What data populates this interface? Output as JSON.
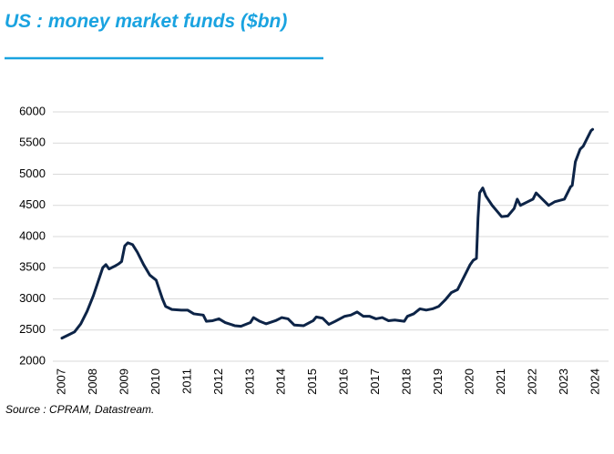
{
  "chart_data": {
    "type": "line",
    "title": "US : money market funds ($bn)",
    "source": "Source : CPRAM, Datastream.",
    "xlim": [
      2007,
      2024
    ],
    "xticks": [
      2007,
      2008,
      2009,
      2010,
      2011,
      2012,
      2013,
      2014,
      2015,
      2016,
      2017,
      2018,
      2019,
      2020,
      2021,
      2022,
      2023,
      2024
    ],
    "ylim": [
      2000,
      6000
    ],
    "yticks": [
      2000,
      2500,
      3000,
      3500,
      4000,
      4500,
      5000,
      5500,
      6000
    ],
    "grid": true,
    "series": [
      {
        "color": "#0d2447",
        "x": [
          2007.0,
          2007.2,
          2007.4,
          2007.6,
          2007.8,
          2008.0,
          2008.2,
          2008.3,
          2008.4,
          2008.5,
          2008.7,
          2008.8,
          2008.9,
          2009.0,
          2009.1,
          2009.25,
          2009.4,
          2009.6,
          2009.8,
          2010.0,
          2010.2,
          2010.3,
          2010.5,
          2010.8,
          2011.0,
          2011.2,
          2011.5,
          2011.6,
          2011.8,
          2012.0,
          2012.2,
          2012.5,
          2012.7,
          2013.0,
          2013.1,
          2013.3,
          2013.5,
          2013.8,
          2014.0,
          2014.2,
          2014.4,
          2014.7,
          2015.0,
          2015.1,
          2015.3,
          2015.5,
          2015.7,
          2016.0,
          2016.2,
          2016.4,
          2016.6,
          2016.8,
          2017.0,
          2017.2,
          2017.4,
          2017.6,
          2017.9,
          2018.0,
          2018.2,
          2018.4,
          2018.6,
          2018.8,
          2019.0,
          2019.2,
          2019.4,
          2019.6,
          2019.8,
          2020.0,
          2020.1,
          2020.2,
          2020.25,
          2020.3,
          2020.4,
          2020.5,
          2020.7,
          2020.9,
          2021.0,
          2021.2,
          2021.4,
          2021.5,
          2021.6,
          2021.8,
          2022.0,
          2022.1,
          2022.3,
          2022.5,
          2022.7,
          2023.0,
          2023.2,
          2023.25,
          2023.35,
          2023.5,
          2023.6,
          2023.7,
          2023.8,
          2023.85,
          2023.9
        ],
        "values": [
          2370,
          2420,
          2470,
          2600,
          2800,
          3050,
          3350,
          3500,
          3550,
          3480,
          3530,
          3560,
          3600,
          3850,
          3900,
          3870,
          3750,
          3550,
          3380,
          3300,
          3000,
          2880,
          2830,
          2820,
          2820,
          2760,
          2740,
          2640,
          2650,
          2680,
          2620,
          2570,
          2560,
          2620,
          2700,
          2640,
          2600,
          2650,
          2700,
          2680,
          2580,
          2570,
          2650,
          2710,
          2690,
          2590,
          2640,
          2720,
          2740,
          2790,
          2720,
          2720,
          2680,
          2700,
          2650,
          2660,
          2640,
          2720,
          2760,
          2840,
          2820,
          2840,
          2880,
          2980,
          3100,
          3150,
          3350,
          3550,
          3620,
          3650,
          4300,
          4700,
          4780,
          4650,
          4500,
          4380,
          4320,
          4330,
          4450,
          4600,
          4500,
          4550,
          4600,
          4700,
          4600,
          4500,
          4560,
          4600,
          4800,
          4820,
          5200,
          5400,
          5450,
          5550,
          5650,
          5700,
          5720
        ]
      }
    ]
  }
}
